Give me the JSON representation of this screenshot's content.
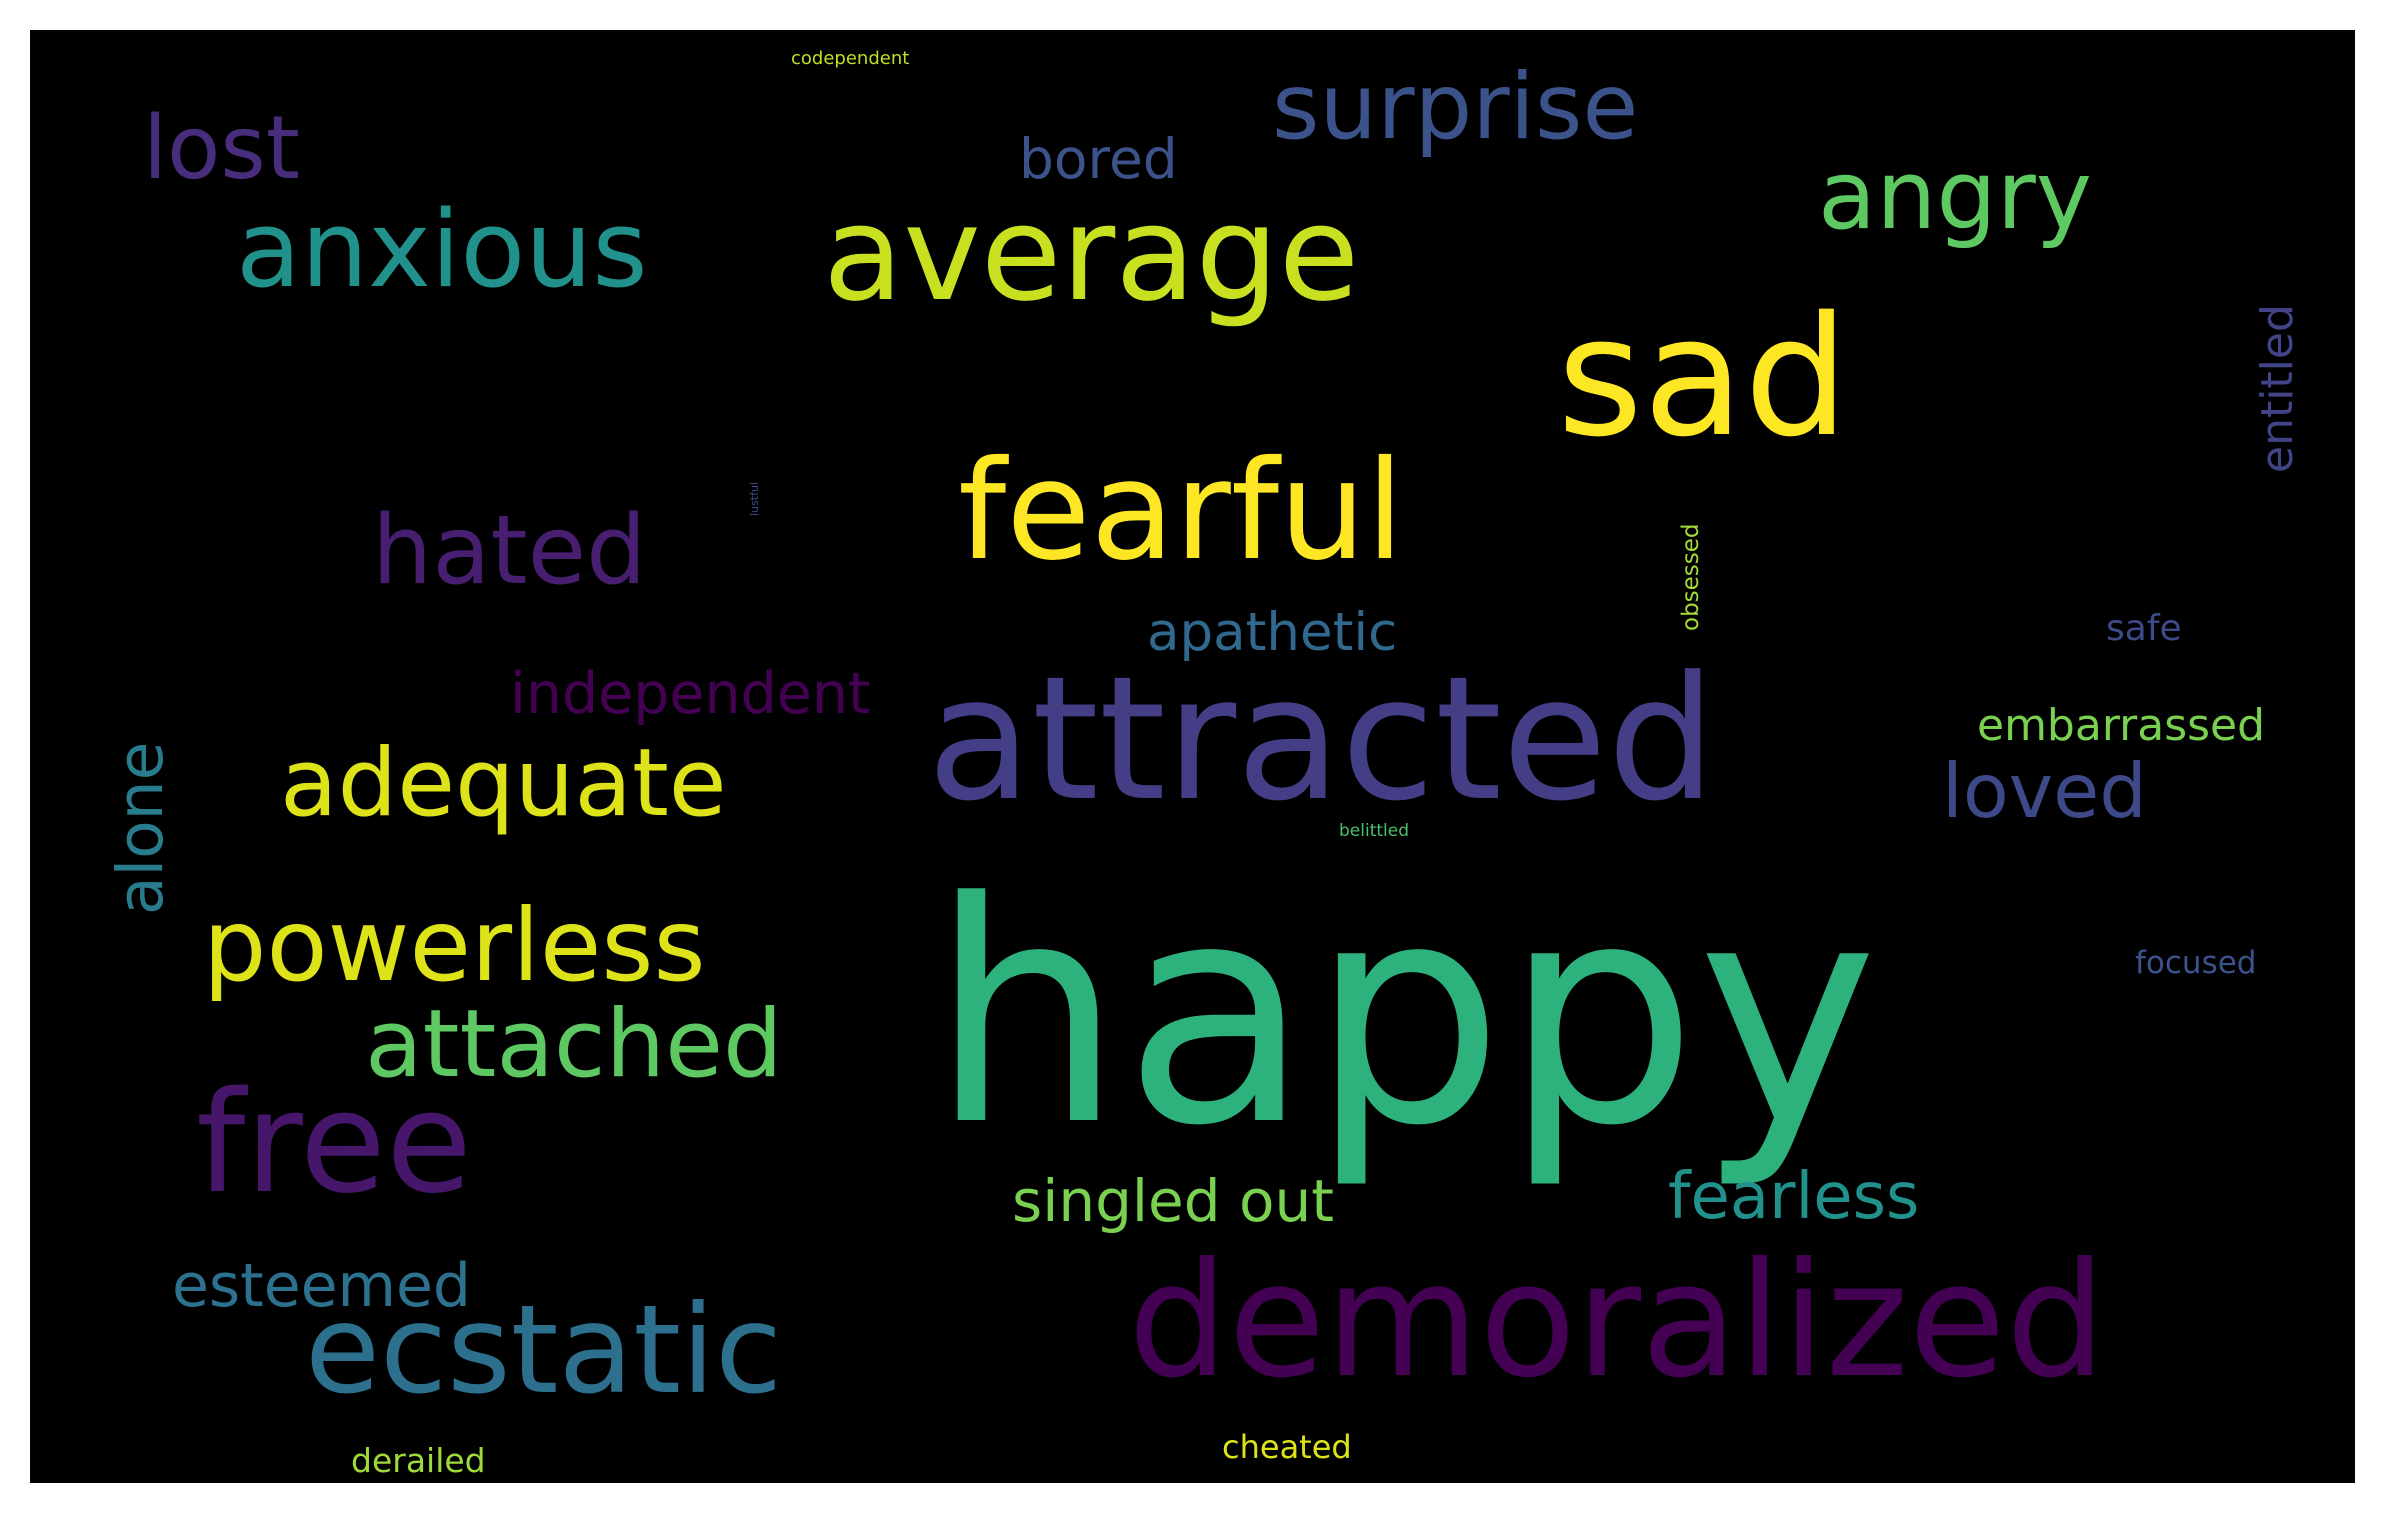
{
  "figure": {
    "background": "#ffffff",
    "canvas_background": "#000000"
  },
  "words": [
    {
      "text": "happy",
      "color": "#2db27d"
    },
    {
      "text": "attracted",
      "color": "#433e85"
    },
    {
      "text": "demoralized",
      "color": "#440154"
    },
    {
      "text": "sad",
      "color": "#fde725"
    },
    {
      "text": "average",
      "color": "#c8e020"
    },
    {
      "text": "fearful",
      "color": "#fde725"
    },
    {
      "text": "free",
      "color": "#46166b"
    },
    {
      "text": "ecstatic",
      "color": "#2d708e"
    },
    {
      "text": "anxious",
      "color": "#21918c"
    },
    {
      "text": "powerless",
      "color": "#dde318"
    },
    {
      "text": "adequate",
      "color": "#dde318"
    },
    {
      "text": "attached",
      "color": "#5ec962"
    },
    {
      "text": "surprise",
      "color": "#3b528b"
    },
    {
      "text": "angry",
      "color": "#5ec962"
    },
    {
      "text": "hated",
      "color": "#481f70"
    },
    {
      "text": "lost",
      "color": "#472d7b"
    },
    {
      "text": "fearless",
      "color": "#21918c"
    },
    {
      "text": "singled out",
      "color": "#7ad151"
    },
    {
      "text": "esteemed",
      "color": "#2c728e"
    },
    {
      "text": "loved",
      "color": "#3e4989"
    },
    {
      "text": "alone",
      "color": "#287c8e"
    },
    {
      "text": "independent",
      "color": "#440154"
    },
    {
      "text": "apathetic",
      "color": "#31688e"
    },
    {
      "text": "bored",
      "color": "#3b528b"
    },
    {
      "text": "entitled",
      "color": "#414487"
    },
    {
      "text": "embarrassed",
      "color": "#7ad151"
    },
    {
      "text": "safe",
      "color": "#3e4989"
    },
    {
      "text": "focused",
      "color": "#3b528b"
    },
    {
      "text": "derailed",
      "color": "#9fda3a"
    },
    {
      "text": "cheated",
      "color": "#dde318"
    },
    {
      "text": "obsessed",
      "color": "#a5db36"
    },
    {
      "text": "codependent",
      "color": "#c0df25"
    },
    {
      "text": "belittled",
      "color": "#4ac16d"
    },
    {
      "text": "lustful",
      "color": "#3e4a89"
    }
  ]
}
